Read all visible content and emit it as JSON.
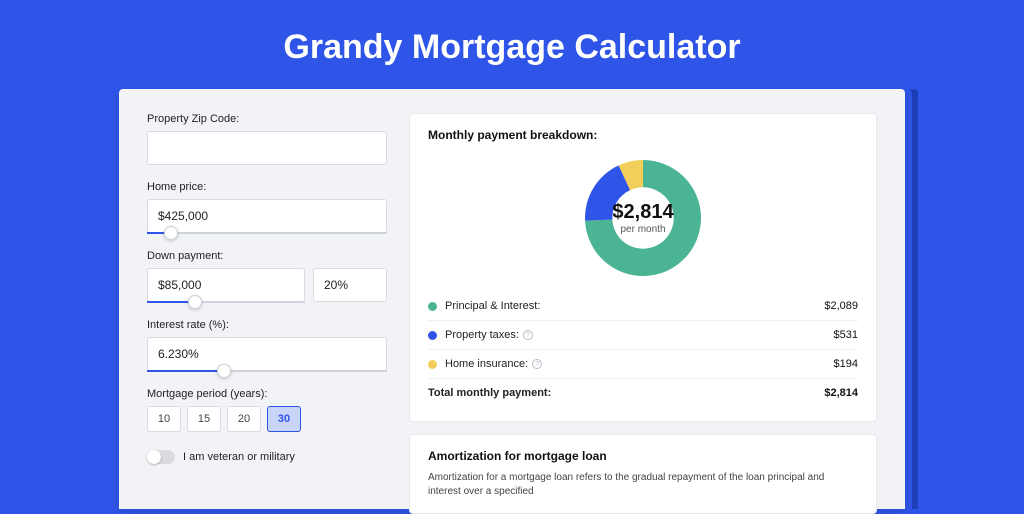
{
  "page_title": "Grandy Mortgage Calculator",
  "colors": {
    "page_bg": "#2f55e8",
    "card_bg": "#f2f3f7",
    "accent": "#2f55e8"
  },
  "form": {
    "zip": {
      "label": "Property Zip Code:",
      "value": ""
    },
    "home_price": {
      "label": "Home price:",
      "value": "$425,000",
      "slider_pct": 10
    },
    "down_payment": {
      "label": "Down payment:",
      "amount": "$85,000",
      "percent": "20%",
      "slider_pct": 30
    },
    "interest_rate": {
      "label": "Interest rate (%):",
      "value": "6.230%",
      "slider_pct": 32
    },
    "mortgage_period": {
      "label": "Mortgage period (years):",
      "options": [
        "10",
        "15",
        "20",
        "30"
      ],
      "selected": "30"
    },
    "veteran": {
      "label": "I am veteran or military",
      "on": false
    }
  },
  "breakdown": {
    "title": "Monthly payment breakdown:",
    "total": {
      "amount": "$2,814",
      "sub": "per month"
    },
    "donut": {
      "slices": [
        {
          "key": "principal_interest",
          "value": 2089,
          "color": "#4bb495"
        },
        {
          "key": "property_taxes",
          "value": 531,
          "color": "#2f55e8"
        },
        {
          "key": "home_insurance",
          "value": 194,
          "color": "#f2cf5b"
        }
      ],
      "thickness_pct": 22,
      "bg": "#ffffff"
    },
    "rows": [
      {
        "label": "Principal & Interest:",
        "value": "$2,089",
        "color": "#4bb495",
        "info": false
      },
      {
        "label": "Property taxes:",
        "value": "$531",
        "color": "#2f55e8",
        "info": true
      },
      {
        "label": "Home insurance:",
        "value": "$194",
        "color": "#f2cf5b",
        "info": true
      }
    ],
    "total_row": {
      "label": "Total monthly payment:",
      "value": "$2,814"
    }
  },
  "amortization": {
    "title": "Amortization for mortgage loan",
    "text": "Amortization for a mortgage loan refers to the gradual repayment of the loan principal and interest over a specified"
  }
}
